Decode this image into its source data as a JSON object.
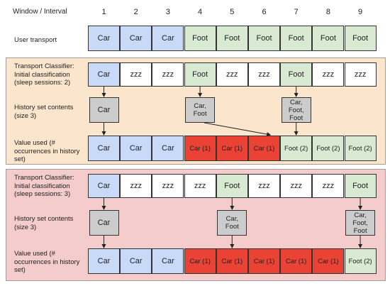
{
  "header": {
    "title": "Window / Interval",
    "columns": [
      "1",
      "2",
      "3",
      "4",
      "5",
      "6",
      "7",
      "8",
      "9"
    ]
  },
  "colors": {
    "car_blue": "#c9daf8",
    "foot_green": "#d9ead3",
    "red": "#ea4335",
    "gray": "#cccccc",
    "white": "#ffffff",
    "panel_orange": "#fce5cd",
    "panel_pink": "#f4cccc"
  },
  "user_transport": {
    "label": "User transport",
    "cells": [
      "Car",
      "Car",
      "Car",
      "Foot",
      "Foot",
      "Foot",
      "Foot",
      "Foot",
      "Foot"
    ],
    "fills": [
      "car_blue",
      "car_blue",
      "car_blue",
      "foot_green",
      "foot_green",
      "foot_green",
      "foot_green",
      "foot_green",
      "foot_green"
    ]
  },
  "panels": [
    {
      "color": "panel_orange",
      "classifier": {
        "label": "Transport Classifier:\nInitial classification\n(sleep sessions: 2)",
        "cells": [
          "Car",
          "zzz",
          "zzz",
          "Foot",
          "zzz",
          "zzz",
          "Foot",
          "zzz",
          "zzz"
        ],
        "fills": [
          "car_blue",
          "white",
          "white",
          "foot_green",
          "white",
          "white",
          "foot_green",
          "white",
          "white"
        ]
      },
      "history": {
        "label": "History set contents\n(size 3)",
        "boxes": [
          {
            "col": 1,
            "text": "Car"
          },
          {
            "col": 4,
            "text": "Car,\nFoot"
          },
          {
            "col": 7,
            "text": "Car,\nFoot,\nFoot"
          }
        ]
      },
      "value_used": {
        "label": "Value used (#\noccurrences in history\nset)",
        "cells": [
          "Car",
          "Car",
          "Car",
          "Car (1)",
          "Car (1)",
          "Car (1)",
          "Foot (2)",
          "Foot (2)",
          "Foot (2)"
        ],
        "fills": [
          "car_blue",
          "car_blue",
          "car_blue",
          "red",
          "red",
          "red",
          "foot_green",
          "foot_green",
          "foot_green"
        ]
      }
    },
    {
      "color": "panel_pink",
      "classifier": {
        "label": "Transport Classifier:\nInitial classification\n(sleep sessions: 3)",
        "cells": [
          "Car",
          "zzz",
          "zzz",
          "zzz",
          "Foot",
          "zzz",
          "zzz",
          "zzz",
          "Foot"
        ],
        "fills": [
          "car_blue",
          "white",
          "white",
          "white",
          "foot_green",
          "white",
          "white",
          "white",
          "foot_green"
        ]
      },
      "history": {
        "label": "History set contents\n(size 3)",
        "boxes": [
          {
            "col": 1,
            "text": "Car"
          },
          {
            "col": 5,
            "text": "Car,\nFoot"
          },
          {
            "col": 9,
            "text": "Car,\nFoot,\nFoot"
          }
        ]
      },
      "value_used": {
        "label": "Value used (#\noccurrences in history\nset)",
        "cells": [
          "Car",
          "Car",
          "Car",
          "Car (1)",
          "Car (1)",
          "Car (1)",
          "Car (1)",
          "Car (1)",
          "Foot (2)"
        ],
        "fills": [
          "car_blue",
          "car_blue",
          "car_blue",
          "red",
          "red",
          "red",
          "red",
          "red",
          "foot_green"
        ]
      }
    }
  ]
}
